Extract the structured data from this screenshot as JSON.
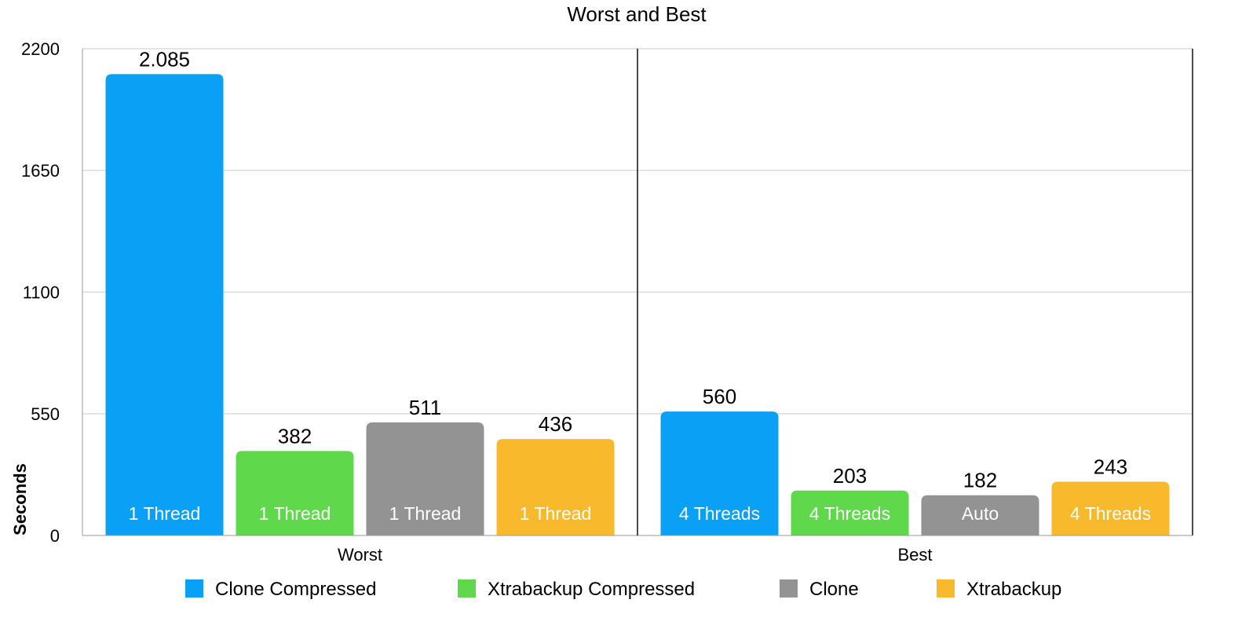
{
  "chart_data": {
    "type": "bar",
    "title": "Worst and Best",
    "xlabel": "",
    "ylabel": "Seconds",
    "ylim": [
      0,
      2200
    ],
    "yticks": [
      0,
      550,
      1100,
      1650,
      2200
    ],
    "grid": true,
    "legend_position": "bottom",
    "categories": [
      "Worst",
      "Best"
    ],
    "series": [
      {
        "name": "Clone Compressed",
        "color": "#0aa0f5",
        "values": [
          2085,
          560
        ],
        "value_labels": [
          "2.085",
          "560"
        ],
        "bar_labels": [
          "1 Thread",
          "4 Threads"
        ]
      },
      {
        "name": "Xtrabackup Compressed",
        "color": "#5fd94b",
        "values": [
          382,
          203
        ],
        "value_labels": [
          "382",
          "203"
        ],
        "bar_labels": [
          "1 Thread",
          "4 Threads"
        ]
      },
      {
        "name": "Clone",
        "color": "#939393",
        "values": [
          511,
          182
        ],
        "value_labels": [
          "511",
          "182"
        ],
        "bar_labels": [
          "1 Thread",
          "Auto"
        ]
      },
      {
        "name": "Xtrabackup",
        "color": "#f8b92d",
        "values": [
          436,
          243
        ],
        "value_labels": [
          "436",
          "243"
        ],
        "bar_labels": [
          "1 Thread",
          "4 Threads"
        ]
      }
    ]
  }
}
